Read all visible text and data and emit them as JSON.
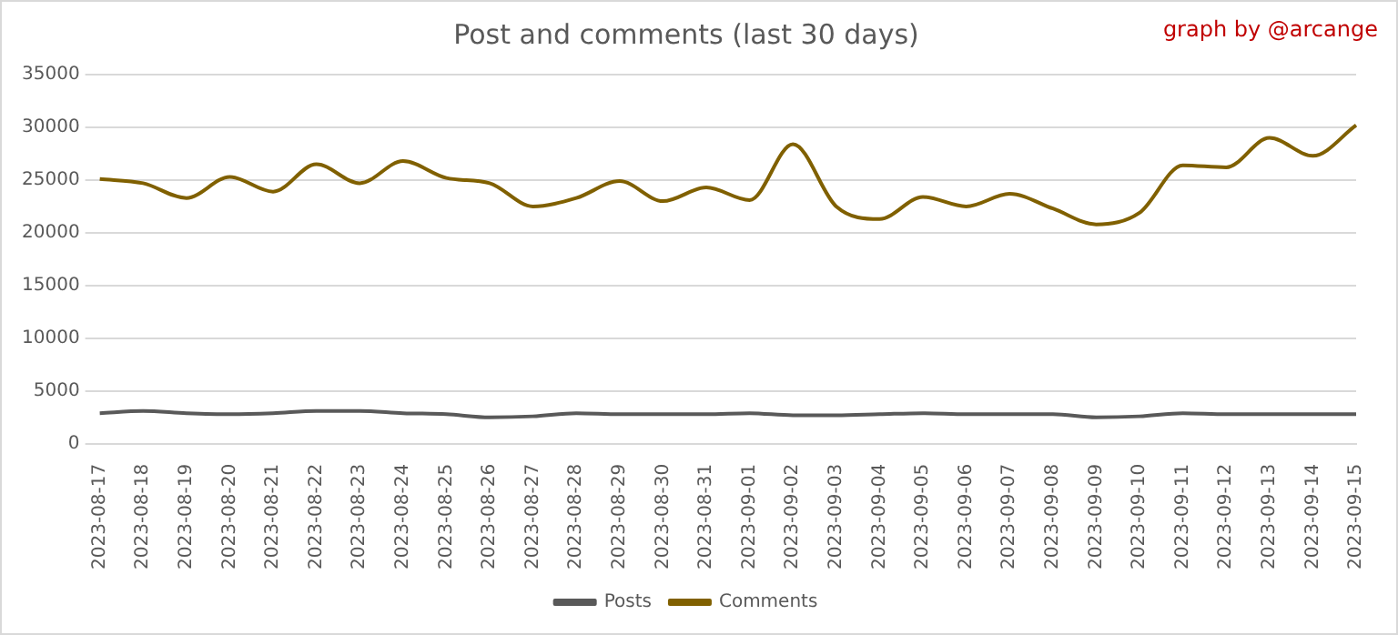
{
  "chart_data": {
    "type": "line",
    "title": "Post and comments (last 30 days)",
    "annotations": [
      "graph by @arcange"
    ],
    "categories": [
      "2023-08-17",
      "2023-08-18",
      "2023-08-19",
      "2023-08-20",
      "2023-08-21",
      "2023-08-22",
      "2023-08-23",
      "2023-08-24",
      "2023-08-25",
      "2023-08-26",
      "2023-08-27",
      "2023-08-28",
      "2023-08-29",
      "2023-08-30",
      "2023-08-31",
      "2023-09-01",
      "2023-09-02",
      "2023-09-03",
      "2023-09-04",
      "2023-09-05",
      "2023-09-06",
      "2023-09-07",
      "2023-09-08",
      "2023-09-09",
      "2023-09-10",
      "2023-09-11",
      "2023-09-12",
      "2023-09-13",
      "2023-09-14",
      "2023-09-15"
    ],
    "series": [
      {
        "name": "Posts",
        "color": "#595959",
        "values": [
          2900,
          3100,
          2900,
          2800,
          2900,
          3100,
          3100,
          2900,
          2800,
          2500,
          2600,
          2900,
          2800,
          2800,
          2800,
          2900,
          2700,
          2700,
          2800,
          2900,
          2800,
          2800,
          2800,
          2500,
          2600,
          2900,
          2800,
          2800,
          2800,
          2800
        ]
      },
      {
        "name": "Comments",
        "color": "#806000",
        "values": [
          25100,
          24700,
          23300,
          25300,
          23900,
          26500,
          24700,
          26800,
          25200,
          24700,
          22500,
          23300,
          24900,
          23000,
          24300,
          23100,
          28400,
          22500,
          21300,
          23400,
          22500,
          23700,
          22300,
          20800,
          21900,
          26400,
          26200,
          29000,
          27300,
          30200
        ]
      }
    ],
    "ylim": [
      0,
      35000
    ],
    "yticks": [
      0,
      5000,
      10000,
      15000,
      20000,
      25000,
      30000,
      35000
    ],
    "grid": "y",
    "legend": "bottom",
    "marker": "none",
    "line_style": "solid"
  }
}
